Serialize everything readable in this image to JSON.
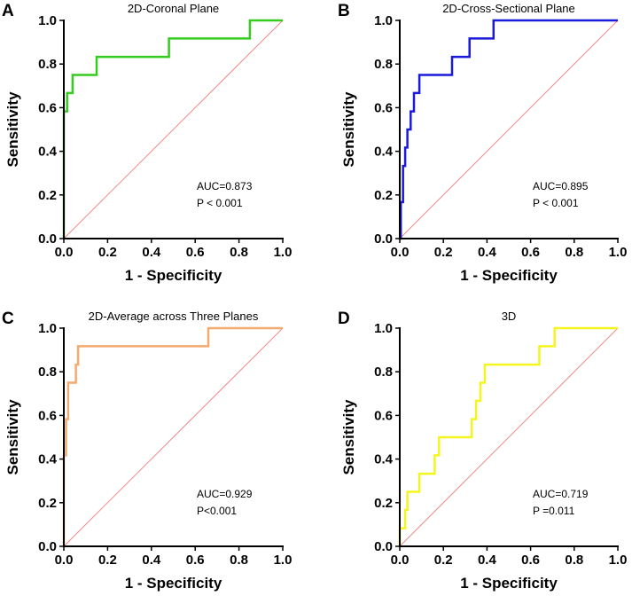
{
  "chart_data": [
    {
      "letter": "A",
      "type": "line",
      "title": "2D-Coronal Plane",
      "xlabel": "1 - Specificity",
      "ylabel": "Sensitivity",
      "xlim": [
        0,
        1
      ],
      "ylim": [
        0,
        1
      ],
      "xticks": [
        "0.0",
        "0.2",
        "0.4",
        "0.6",
        "0.8",
        "1.0"
      ],
      "yticks": [
        "0.0",
        "0.2",
        "0.4",
        "0.6",
        "0.8",
        "1.0"
      ],
      "annotation": [
        "AUC=0.873",
        "P < 0.001"
      ],
      "roc_color": "#33cc1f",
      "reference_color": "#f08a8a",
      "reference_line": {
        "x": [
          0,
          1
        ],
        "y": [
          0,
          1
        ]
      },
      "series": [
        {
          "name": "ROC",
          "x": [
            0,
            0,
            0.015,
            0.015,
            0.04,
            0.04,
            0.15,
            0.15,
            0.48,
            0.48,
            0.85,
            0.85,
            1.0
          ],
          "y": [
            0,
            0.583,
            0.583,
            0.667,
            0.667,
            0.75,
            0.75,
            0.833,
            0.833,
            0.917,
            0.917,
            1.0,
            1.0
          ]
        }
      ]
    },
    {
      "letter": "B",
      "type": "line",
      "title": "2D-Cross-Sectional Plane",
      "xlabel": "1 - Specificity",
      "ylabel": "Sensitivity",
      "xlim": [
        0,
        1
      ],
      "ylim": [
        0,
        1
      ],
      "xticks": [
        "0.0",
        "0.2",
        "0.4",
        "0.6",
        "0.8",
        "1.0"
      ],
      "yticks": [
        "0.0",
        "0.2",
        "0.4",
        "0.6",
        "0.8",
        "1.0"
      ],
      "annotation": [
        "AUC=0.895",
        "P < 0.001"
      ],
      "roc_color": "#1a1adc",
      "reference_color": "#f08a8a",
      "reference_line": {
        "x": [
          0,
          1
        ],
        "y": [
          0,
          1
        ]
      },
      "series": [
        {
          "name": "ROC",
          "x": [
            0,
            0.005,
            0.005,
            0.015,
            0.015,
            0.025,
            0.025,
            0.035,
            0.035,
            0.05,
            0.05,
            0.065,
            0.065,
            0.09,
            0.09,
            0.15,
            0.15,
            0.24,
            0.24,
            0.32,
            0.32,
            0.43,
            0.43,
            1.0
          ],
          "y": [
            0,
            0,
            0.167,
            0.167,
            0.333,
            0.333,
            0.417,
            0.417,
            0.5,
            0.5,
            0.583,
            0.583,
            0.667,
            0.667,
            0.75,
            0.75,
            0.75,
            0.75,
            0.833,
            0.833,
            0.917,
            0.917,
            1.0,
            1.0
          ]
        }
      ]
    },
    {
      "letter": "C",
      "type": "line",
      "title": "2D-Average across Three Planes",
      "xlabel": "1 - Specificity",
      "ylabel": "Sensitivity",
      "xlim": [
        0,
        1
      ],
      "ylim": [
        0,
        1
      ],
      "xticks": [
        "0.0",
        "0.2",
        "0.4",
        "0.6",
        "0.8",
        "1.0"
      ],
      "yticks": [
        "0.0",
        "0.2",
        "0.4",
        "0.6",
        "0.8",
        "1.0"
      ],
      "annotation": [
        "AUC=0.929",
        "P<0.001"
      ],
      "roc_color": "#f2aa6e",
      "reference_color": "#f08a8a",
      "reference_line": {
        "x": [
          0,
          1
        ],
        "y": [
          0,
          1
        ]
      },
      "series": [
        {
          "name": "ROC",
          "x": [
            0,
            0,
            0.01,
            0.01,
            0.02,
            0.02,
            0.035,
            0.035,
            0.055,
            0.055,
            0.065,
            0.065,
            0.66,
            0.66,
            1.0
          ],
          "y": [
            0,
            0.417,
            0.417,
            0.583,
            0.583,
            0.75,
            0.75,
            0.75,
            0.75,
            0.833,
            0.833,
            0.917,
            0.917,
            1.0,
            1.0
          ]
        }
      ]
    },
    {
      "letter": "D",
      "type": "line",
      "title": "3D",
      "xlabel": "1 - Specificity",
      "ylabel": "Sensitivity",
      "xlim": [
        0,
        1
      ],
      "ylim": [
        0,
        1
      ],
      "xticks": [
        "0.0",
        "0.2",
        "0.4",
        "0.6",
        "0.8",
        "1.0"
      ],
      "yticks": [
        "0.0",
        "0.2",
        "0.4",
        "0.6",
        "0.8",
        "1.0"
      ],
      "annotation": [
        "AUC=0.719",
        "P =0.011"
      ],
      "roc_color": "#f5f51e",
      "reference_color": "#f08a8a",
      "reference_line": {
        "x": [
          0,
          1
        ],
        "y": [
          0,
          1
        ]
      },
      "series": [
        {
          "name": "ROC",
          "x": [
            0,
            0,
            0.025,
            0.025,
            0.035,
            0.035,
            0.09,
            0.09,
            0.16,
            0.16,
            0.18,
            0.18,
            0.33,
            0.33,
            0.35,
            0.35,
            0.37,
            0.37,
            0.39,
            0.39,
            0.41,
            0.41,
            0.64,
            0.64,
            0.71,
            0.71,
            1.0
          ],
          "y": [
            0,
            0.083,
            0.083,
            0.167,
            0.167,
            0.25,
            0.25,
            0.333,
            0.333,
            0.417,
            0.417,
            0.5,
            0.5,
            0.583,
            0.583,
            0.667,
            0.667,
            0.75,
            0.75,
            0.833,
            0.833,
            0.833,
            0.833,
            0.917,
            0.917,
            1.0,
            1.0
          ]
        }
      ]
    }
  ]
}
